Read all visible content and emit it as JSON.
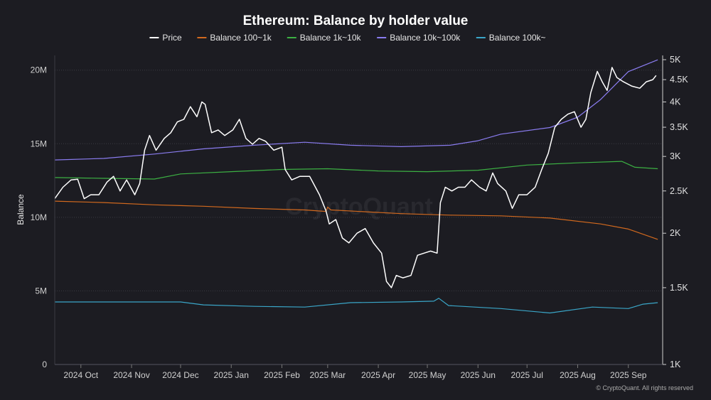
{
  "chart_data": {
    "type": "line",
    "title": "Ethereum: Balance by holder value",
    "ylabel": "Balance",
    "ylim": [
      0,
      21000000
    ],
    "y2lim": [
      1000,
      5000
    ],
    "y2scale": "log",
    "yticks": [
      "0",
      "5M",
      "10M",
      "15M",
      "20M"
    ],
    "y2ticks": [
      "1K",
      "1.5K",
      "2K",
      "2.5K",
      "3K",
      "3.5K",
      "4K",
      "4.5K",
      "5K"
    ],
    "xticks": [
      "2024 Oct",
      "2024 Nov",
      "2024 Dec",
      "2025 Jan",
      "2025 Feb",
      "2025 Mar",
      "2025 Apr",
      "2025 May",
      "2025 Jun",
      "2025 Jul",
      "2025 Aug",
      "2025 Sep"
    ],
    "xrange": [
      "2024-09-15",
      "2025-09-22"
    ],
    "legend_position": "top",
    "grid": "horizontal",
    "watermark": "CryptoQuant",
    "credit": "© CryptoQuant. All rights reserved",
    "series": [
      {
        "name": "Price",
        "axis": "right",
        "color": "#ffffff",
        "points": [
          [
            "2024-09-15",
            2400
          ],
          [
            "2024-09-20",
            2550
          ],
          [
            "2024-09-25",
            2650
          ],
          [
            "2024-09-29",
            2660
          ],
          [
            "2024-10-03",
            2400
          ],
          [
            "2024-10-07",
            2450
          ],
          [
            "2024-10-12",
            2450
          ],
          [
            "2024-10-17",
            2620
          ],
          [
            "2024-10-21",
            2700
          ],
          [
            "2024-10-25",
            2500
          ],
          [
            "2024-10-29",
            2650
          ],
          [
            "2024-11-03",
            2450
          ],
          [
            "2024-11-06",
            2600
          ],
          [
            "2024-11-09",
            3100
          ],
          [
            "2024-11-12",
            3350
          ],
          [
            "2024-11-16",
            3100
          ],
          [
            "2024-11-21",
            3300
          ],
          [
            "2024-11-25",
            3400
          ],
          [
            "2024-11-29",
            3600
          ],
          [
            "2024-12-03",
            3650
          ],
          [
            "2024-12-07",
            3900
          ],
          [
            "2024-12-11",
            3700
          ],
          [
            "2024-12-14",
            4000
          ],
          [
            "2024-12-16",
            3950
          ],
          [
            "2024-12-20",
            3400
          ],
          [
            "2024-12-24",
            3450
          ],
          [
            "2024-12-28",
            3350
          ],
          [
            "2025-01-02",
            3450
          ],
          [
            "2025-01-06",
            3650
          ],
          [
            "2025-01-10",
            3300
          ],
          [
            "2025-01-14",
            3200
          ],
          [
            "2025-01-18",
            3300
          ],
          [
            "2025-01-22",
            3250
          ],
          [
            "2025-01-27",
            3100
          ],
          [
            "2025-02-01",
            3150
          ],
          [
            "2025-02-03",
            2800
          ],
          [
            "2025-02-07",
            2650
          ],
          [
            "2025-02-12",
            2700
          ],
          [
            "2025-02-18",
            2700
          ],
          [
            "2025-02-24",
            2450
          ],
          [
            "2025-02-28",
            2250
          ],
          [
            "2025-03-02",
            2100
          ],
          [
            "2025-03-06",
            2150
          ],
          [
            "2025-03-10",
            1950
          ],
          [
            "2025-03-14",
            1900
          ],
          [
            "2025-03-19",
            2000
          ],
          [
            "2025-03-24",
            2050
          ],
          [
            "2025-03-29",
            1900
          ],
          [
            "2025-04-03",
            1800
          ],
          [
            "2025-04-06",
            1550
          ],
          [
            "2025-04-09",
            1500
          ],
          [
            "2025-04-12",
            1600
          ],
          [
            "2025-04-16",
            1580
          ],
          [
            "2025-04-21",
            1600
          ],
          [
            "2025-04-25",
            1780
          ],
          [
            "2025-04-29",
            1800
          ],
          [
            "2025-05-03",
            1820
          ],
          [
            "2025-05-07",
            1800
          ],
          [
            "2025-05-09",
            2350
          ],
          [
            "2025-05-12",
            2550
          ],
          [
            "2025-05-16",
            2500
          ],
          [
            "2025-05-20",
            2550
          ],
          [
            "2025-05-24",
            2550
          ],
          [
            "2025-05-28",
            2650
          ],
          [
            "2025-06-02",
            2550
          ],
          [
            "2025-06-06",
            2500
          ],
          [
            "2025-06-10",
            2750
          ],
          [
            "2025-06-13",
            2600
          ],
          [
            "2025-06-18",
            2500
          ],
          [
            "2025-06-22",
            2280
          ],
          [
            "2025-06-26",
            2450
          ],
          [
            "2025-07-01",
            2450
          ],
          [
            "2025-07-06",
            2550
          ],
          [
            "2025-07-10",
            2800
          ],
          [
            "2025-07-14",
            3050
          ],
          [
            "2025-07-18",
            3500
          ],
          [
            "2025-07-22",
            3650
          ],
          [
            "2025-07-26",
            3750
          ],
          [
            "2025-07-30",
            3800
          ],
          [
            "2025-08-03",
            3500
          ],
          [
            "2025-08-06",
            3650
          ],
          [
            "2025-08-09",
            4200
          ],
          [
            "2025-08-13",
            4700
          ],
          [
            "2025-08-16",
            4450
          ],
          [
            "2025-08-19",
            4250
          ],
          [
            "2025-08-22",
            4800
          ],
          [
            "2025-08-25",
            4550
          ],
          [
            "2025-08-29",
            4450
          ],
          [
            "2025-09-03",
            4350
          ],
          [
            "2025-09-08",
            4300
          ],
          [
            "2025-09-12",
            4450
          ],
          [
            "2025-09-16",
            4500
          ],
          [
            "2025-09-18",
            4600
          ]
        ]
      },
      {
        "name": "Balance 100~1k",
        "axis": "left",
        "color": "#d2691e",
        "points": [
          [
            "2024-09-15",
            11100000
          ],
          [
            "2024-10-15",
            11000000
          ],
          [
            "2024-11-15",
            10850000
          ],
          [
            "2024-12-15",
            10750000
          ],
          [
            "2025-01-15",
            10600000
          ],
          [
            "2025-02-15",
            10500000
          ],
          [
            "2025-02-28",
            10400000
          ],
          [
            "2025-03-01",
            10700000
          ],
          [
            "2025-03-03",
            10500000
          ],
          [
            "2025-04-15",
            10250000
          ],
          [
            "2025-05-15",
            10150000
          ],
          [
            "2025-06-15",
            10100000
          ],
          [
            "2025-07-15",
            9950000
          ],
          [
            "2025-08-15",
            9550000
          ],
          [
            "2025-09-01",
            9200000
          ],
          [
            "2025-09-19",
            8500000
          ]
        ]
      },
      {
        "name": "Balance 1k~10k",
        "axis": "left",
        "color": "#3cb043",
        "points": [
          [
            "2024-09-15",
            12700000
          ],
          [
            "2024-10-15",
            12650000
          ],
          [
            "2024-11-15",
            12600000
          ],
          [
            "2024-12-01",
            12950000
          ],
          [
            "2025-01-01",
            13100000
          ],
          [
            "2025-02-01",
            13250000
          ],
          [
            "2025-03-01",
            13300000
          ],
          [
            "2025-04-01",
            13150000
          ],
          [
            "2025-05-01",
            13100000
          ],
          [
            "2025-06-01",
            13200000
          ],
          [
            "2025-07-01",
            13550000
          ],
          [
            "2025-08-01",
            13700000
          ],
          [
            "2025-08-28",
            13800000
          ],
          [
            "2025-09-05",
            13400000
          ],
          [
            "2025-09-19",
            13300000
          ]
        ]
      },
      {
        "name": "Balance 10k~100k",
        "axis": "left",
        "color": "#8a7cf0",
        "points": [
          [
            "2024-09-15",
            13900000
          ],
          [
            "2024-10-15",
            14000000
          ],
          [
            "2024-11-15",
            14300000
          ],
          [
            "2024-12-15",
            14650000
          ],
          [
            "2025-01-15",
            14900000
          ],
          [
            "2025-02-15",
            15100000
          ],
          [
            "2025-03-15",
            14900000
          ],
          [
            "2025-04-15",
            14800000
          ],
          [
            "2025-05-15",
            14900000
          ],
          [
            "2025-06-01",
            15200000
          ],
          [
            "2025-06-15",
            15650000
          ],
          [
            "2025-07-15",
            16100000
          ],
          [
            "2025-08-01",
            16800000
          ],
          [
            "2025-08-15",
            18000000
          ],
          [
            "2025-09-01",
            19900000
          ],
          [
            "2025-09-19",
            20700000
          ]
        ]
      },
      {
        "name": "Balance 100k~",
        "axis": "left",
        "color": "#3aa6c8",
        "points": [
          [
            "2024-09-15",
            4250000
          ],
          [
            "2024-12-01",
            4250000
          ],
          [
            "2024-12-15",
            4050000
          ],
          [
            "2025-01-15",
            3950000
          ],
          [
            "2025-02-15",
            3900000
          ],
          [
            "2025-03-15",
            4200000
          ],
          [
            "2025-04-15",
            4250000
          ],
          [
            "2025-05-05",
            4300000
          ],
          [
            "2025-05-08",
            4500000
          ],
          [
            "2025-05-14",
            4000000
          ],
          [
            "2025-06-15",
            3800000
          ],
          [
            "2025-07-15",
            3500000
          ],
          [
            "2025-08-10",
            3900000
          ],
          [
            "2025-09-01",
            3800000
          ],
          [
            "2025-09-10",
            4100000
          ],
          [
            "2025-09-19",
            4200000
          ]
        ]
      }
    ]
  }
}
